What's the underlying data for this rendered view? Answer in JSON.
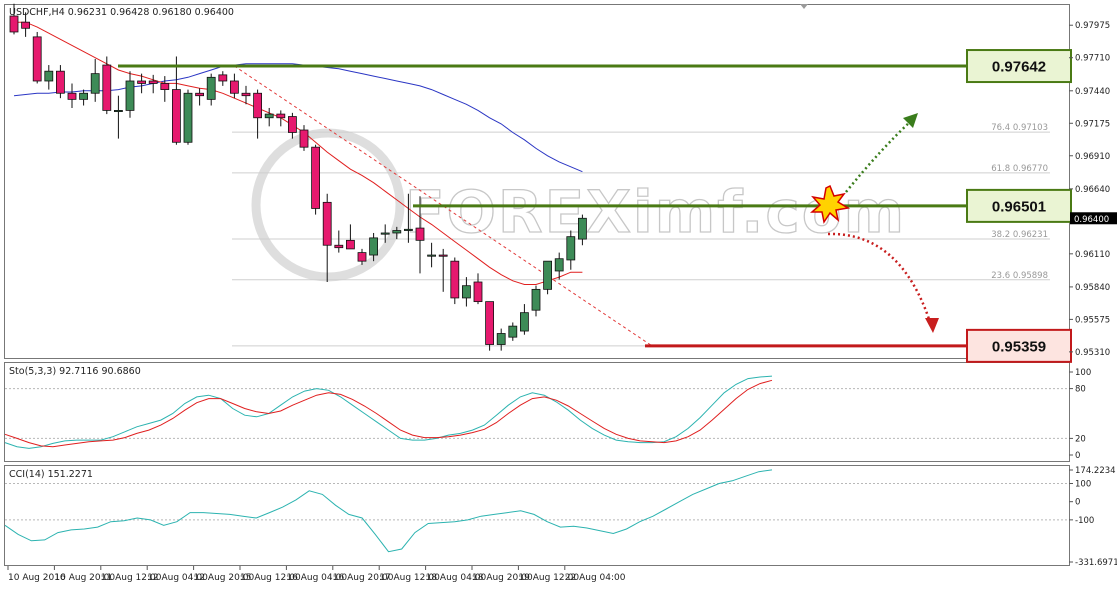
{
  "chart_data": {
    "type": "candlestick",
    "symbol": "USDCHF",
    "timeframe": "H4",
    "header_ohlc": [
      "0.96231",
      "0.96428",
      "0.96180",
      "0.96400"
    ],
    "y_ticks": [
      "0.97975",
      "0.97710",
      "0.97440",
      "0.97175",
      "0.96910",
      "0.96640",
      "0.96110",
      "0.95840",
      "0.95575",
      "0.95310"
    ],
    "y_tick_values": [
      0.97975,
      0.9771,
      0.9744,
      0.97175,
      0.9691,
      0.9664,
      0.9611,
      0.9584,
      0.95575,
      0.9531
    ],
    "ylim": [
      0.9526,
      0.9814
    ],
    "current_price_label": "0.96400",
    "current_price": 0.964,
    "x_ticks": [
      "10 Aug 2016",
      "10 Aug 20:00",
      "11 Aug 12:00",
      "12 Aug 04:00",
      "12 Aug 20:00",
      "15 Aug 12:00",
      "16 Aug 04:00",
      "16 Aug 20:00",
      "17 Aug 12:00",
      "18 Aug 04:00",
      "18 Aug 20:00",
      "19 Aug 12:00",
      "22 Aug 04:00"
    ],
    "x_tick_index": [
      0,
      4,
      8,
      12,
      16,
      20,
      24,
      28,
      32,
      36,
      40,
      44,
      48
    ],
    "candles": [
      {
        "o": 0.9805,
        "h": 0.9815,
        "l": 0.979,
        "c": 0.9792
      },
      {
        "o": 0.98,
        "h": 0.9808,
        "l": 0.9788,
        "c": 0.9795
      },
      {
        "o": 0.9788,
        "h": 0.9792,
        "l": 0.975,
        "c": 0.9752
      },
      {
        "o": 0.9752,
        "h": 0.9765,
        "l": 0.9745,
        "c": 0.976
      },
      {
        "o": 0.976,
        "h": 0.9765,
        "l": 0.9738,
        "c": 0.9742
      },
      {
        "o": 0.9742,
        "h": 0.975,
        "l": 0.973,
        "c": 0.9737
      },
      {
        "o": 0.9737,
        "h": 0.9745,
        "l": 0.9732,
        "c": 0.9742
      },
      {
        "o": 0.9742,
        "h": 0.977,
        "l": 0.9735,
        "c": 0.9758
      },
      {
        "o": 0.9765,
        "h": 0.9772,
        "l": 0.9725,
        "c": 0.9728
      },
      {
        "o": 0.9728,
        "h": 0.974,
        "l": 0.9705,
        "c": 0.9728
      },
      {
        "o": 0.9728,
        "h": 0.976,
        "l": 0.9722,
        "c": 0.9752
      },
      {
        "o": 0.9752,
        "h": 0.9758,
        "l": 0.9742,
        "c": 0.975
      },
      {
        "o": 0.9752,
        "h": 0.9757,
        "l": 0.9742,
        "c": 0.975
      },
      {
        "o": 0.975,
        "h": 0.9756,
        "l": 0.9735,
        "c": 0.9745
      },
      {
        "o": 0.9745,
        "h": 0.9772,
        "l": 0.97,
        "c": 0.9702
      },
      {
        "o": 0.9702,
        "h": 0.9745,
        "l": 0.97,
        "c": 0.9742
      },
      {
        "o": 0.9742,
        "h": 0.9746,
        "l": 0.9732,
        "c": 0.974
      },
      {
        "o": 0.9737,
        "h": 0.9758,
        "l": 0.9732,
        "c": 0.9755
      },
      {
        "o": 0.9757,
        "h": 0.976,
        "l": 0.9748,
        "c": 0.9752
      },
      {
        "o": 0.9752,
        "h": 0.9758,
        "l": 0.9738,
        "c": 0.9742
      },
      {
        "o": 0.9742,
        "h": 0.9748,
        "l": 0.9733,
        "c": 0.974
      },
      {
        "o": 0.9742,
        "h": 0.9745,
        "l": 0.9705,
        "c": 0.9722
      },
      {
        "o": 0.9722,
        "h": 0.973,
        "l": 0.9715,
        "c": 0.9725
      },
      {
        "o": 0.9725,
        "h": 0.9728,
        "l": 0.9715,
        "c": 0.9722
      },
      {
        "o": 0.9723,
        "h": 0.9726,
        "l": 0.9705,
        "c": 0.971
      },
      {
        "o": 0.9712,
        "h": 0.9716,
        "l": 0.9695,
        "c": 0.9698
      },
      {
        "o": 0.9698,
        "h": 0.97,
        "l": 0.9643,
        "c": 0.9648
      },
      {
        "o": 0.9653,
        "h": 0.966,
        "l": 0.9588,
        "c": 0.9618
      },
      {
        "o": 0.9618,
        "h": 0.963,
        "l": 0.9612,
        "c": 0.9616
      },
      {
        "o": 0.9622,
        "h": 0.9635,
        "l": 0.9615,
        "c": 0.9615
      },
      {
        "o": 0.9612,
        "h": 0.9615,
        "l": 0.9602,
        "c": 0.9605
      },
      {
        "o": 0.961,
        "h": 0.9628,
        "l": 0.9605,
        "c": 0.9624
      },
      {
        "o": 0.9627,
        "h": 0.9635,
        "l": 0.962,
        "c": 0.9628
      },
      {
        "o": 0.9628,
        "h": 0.9633,
        "l": 0.9623,
        "c": 0.963
      },
      {
        "o": 0.963,
        "h": 0.966,
        "l": 0.962,
        "c": 0.9631
      },
      {
        "o": 0.9632,
        "h": 0.9658,
        "l": 0.9595,
        "c": 0.9622
      },
      {
        "o": 0.961,
        "h": 0.962,
        "l": 0.96,
        "c": 0.961
      },
      {
        "o": 0.961,
        "h": 0.9615,
        "l": 0.958,
        "c": 0.9609
      },
      {
        "o": 0.9605,
        "h": 0.9608,
        "l": 0.957,
        "c": 0.9575
      },
      {
        "o": 0.9575,
        "h": 0.9592,
        "l": 0.9568,
        "c": 0.9585
      },
      {
        "o": 0.9588,
        "h": 0.9595,
        "l": 0.957,
        "c": 0.9572
      },
      {
        "o": 0.9572,
        "h": 0.9572,
        "l": 0.9532,
        "c": 0.9537
      },
      {
        "o": 0.9537,
        "h": 0.955,
        "l": 0.9532,
        "c": 0.9546
      },
      {
        "o": 0.9543,
        "h": 0.9555,
        "l": 0.954,
        "c": 0.9552
      },
      {
        "o": 0.9548,
        "h": 0.957,
        "l": 0.9545,
        "c": 0.9563
      },
      {
        "o": 0.9565,
        "h": 0.9585,
        "l": 0.956,
        "c": 0.9582
      },
      {
        "o": 0.9582,
        "h": 0.9605,
        "l": 0.9578,
        "c": 0.9605
      },
      {
        "o": 0.9597,
        "h": 0.9612,
        "l": 0.959,
        "c": 0.9607
      },
      {
        "o": 0.9606,
        "h": 0.963,
        "l": 0.9598,
        "c": 0.9625
      },
      {
        "o": 0.9623,
        "h": 0.9643,
        "l": 0.9618,
        "c": 0.964
      }
    ],
    "red_ma": [
      0.98,
      0.98,
      0.9796,
      0.9791,
      0.9786,
      0.9781,
      0.9776,
      0.9771,
      0.9766,
      0.9761,
      0.9758,
      0.9756,
      0.9753,
      0.975,
      0.975,
      0.9748,
      0.9746,
      0.9745,
      0.9742,
      0.9738,
      0.9734,
      0.973,
      0.9726,
      0.9722,
      0.9716,
      0.971,
      0.9702,
      0.9694,
      0.9687,
      0.968,
      0.9675,
      0.9669,
      0.9662,
      0.9655,
      0.9648,
      0.9641,
      0.9635,
      0.9628,
      0.9621,
      0.9614,
      0.9607,
      0.96,
      0.9594,
      0.9589,
      0.9586,
      0.9586,
      0.9589,
      0.9592,
      0.9596,
      0.9596
    ],
    "blue_ma": [
      0.974,
      0.9741,
      0.9742,
      0.9742,
      0.9743,
      0.9743,
      0.9744,
      0.9744,
      0.9744,
      0.9745,
      0.9747,
      0.9748,
      0.975,
      0.9752,
      0.9753,
      0.9755,
      0.9758,
      0.9761,
      0.9764,
      0.9765,
      0.9766,
      0.9766,
      0.9766,
      0.9766,
      0.9766,
      0.9765,
      0.9764,
      0.9763,
      0.9762,
      0.976,
      0.9758,
      0.9756,
      0.9754,
      0.9752,
      0.975,
      0.9748,
      0.9745,
      0.9741,
      0.9737,
      0.9733,
      0.9728,
      0.9722,
      0.9717,
      0.971,
      0.9704,
      0.9697,
      0.9691,
      0.9686,
      0.9682,
      0.9678
    ],
    "levels": [
      {
        "label": "0.97642",
        "value": 0.97642,
        "color": "#4a7a14",
        "box_fill": "#eaf4d3"
      },
      {
        "label": "0.96501",
        "value": 0.96501,
        "color": "#4a7a14",
        "box_fill": "#eaf4d3"
      },
      {
        "label": "0.95359",
        "value": 0.95359,
        "color": "#c2191b",
        "box_fill": "#fde4e0"
      }
    ],
    "fib_levels": [
      {
        "label": "76.4",
        "price": "0.97103",
        "value": 0.97103
      },
      {
        "label": "61.8",
        "price": "0.96770",
        "value": 0.9677
      },
      {
        "label": "38.2",
        "price": "0.96231",
        "value": 0.96231
      },
      {
        "label": "23.6",
        "price": "0.95898",
        "value": 0.95898
      }
    ],
    "stochastic": {
      "label": "Sto(5,3,3) 92.7116 90.6860",
      "ylim": [
        0,
        100
      ],
      "ticks": [
        "100",
        "80",
        "20",
        "0"
      ],
      "tick_values": [
        100,
        80,
        20,
        0
      ],
      "main": [
        15,
        10,
        8,
        10,
        14,
        17,
        18,
        18,
        18,
        22,
        28,
        34,
        38,
        42,
        50,
        62,
        70,
        72,
        68,
        56,
        48,
        46,
        50,
        60,
        70,
        77,
        80,
        78,
        70,
        60,
        50,
        40,
        30,
        20,
        18,
        18,
        20,
        24,
        26,
        30,
        36,
        48,
        60,
        70,
        75,
        72,
        64,
        54,
        42,
        32,
        24,
        18,
        16,
        15,
        15,
        16,
        22,
        32,
        45,
        60,
        75,
        85,
        92,
        94,
        95
      ],
      "signal": [
        25,
        20,
        15,
        11,
        10,
        12,
        14,
        16,
        17,
        18,
        21,
        26,
        30,
        36,
        44,
        54,
        63,
        68,
        68,
        62,
        56,
        52,
        50,
        53,
        60,
        66,
        72,
        75,
        73,
        67,
        59,
        50,
        40,
        30,
        24,
        21,
        21,
        22,
        24,
        27,
        31,
        39,
        50,
        60,
        68,
        70,
        66,
        59,
        50,
        41,
        32,
        25,
        20,
        17,
        16,
        15,
        17,
        22,
        30,
        42,
        55,
        68,
        79,
        86,
        90
      ]
    },
    "cci": {
      "label": "CCI(14) 151.2271",
      "ticks": [
        "174.2234",
        "100",
        "0",
        "-100",
        "-331.6971"
      ],
      "tick_values": [
        174.2234,
        100,
        0,
        -100,
        -331.6971
      ],
      "ylim": [
        -331.6971,
        174.2234
      ],
      "values": [
        -130,
        -180,
        -215,
        -210,
        -170,
        -155,
        -150,
        -140,
        -110,
        -105,
        -90,
        -100,
        -130,
        -110,
        -60,
        -60,
        -65,
        -70,
        -80,
        -90,
        -60,
        -30,
        10,
        60,
        40,
        -20,
        -70,
        -90,
        -180,
        -275,
        -260,
        -170,
        -120,
        -115,
        -110,
        -100,
        -80,
        -70,
        -60,
        -50,
        -70,
        -110,
        -140,
        -135,
        -145,
        -160,
        -175,
        -150,
        -110,
        -80,
        -40,
        0,
        40,
        70,
        100,
        115,
        140,
        165,
        175
      ]
    },
    "watermark": "FOREXimf.com"
  }
}
